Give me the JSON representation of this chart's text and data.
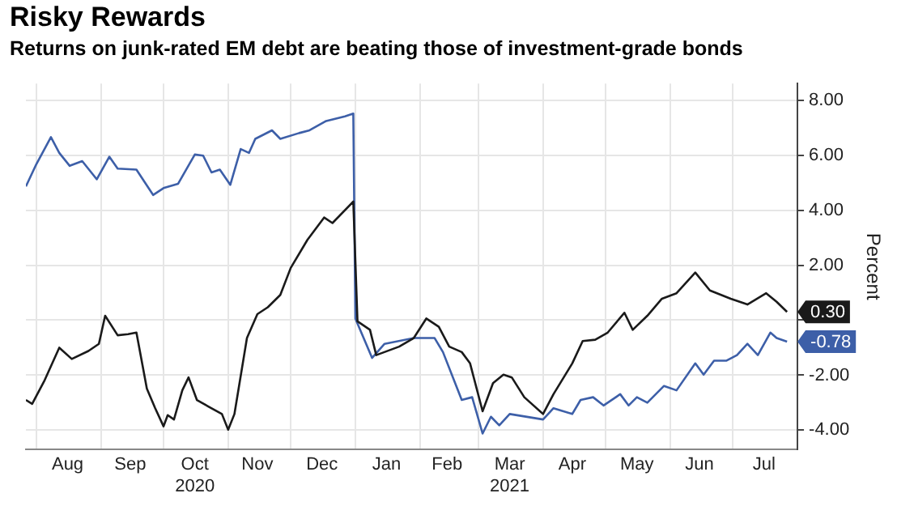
{
  "chart_data": {
    "type": "line",
    "title": "Risky Rewards",
    "subtitle": "Returns on junk-rated EM debt are beating those of investment-grade bonds",
    "ylabel": "Percent",
    "xlim": [
      "2020-07-27",
      "2021-08-01"
    ],
    "xticks": [
      {
        "value": "2020-08-01",
        "label": null
      },
      {
        "value": "2020-08-16",
        "label": "Aug"
      },
      {
        "value": "2020-09-01",
        "label": null
      },
      {
        "value": "2020-09-15",
        "label": "Sep"
      },
      {
        "value": "2020-10-01",
        "label": null
      },
      {
        "value": "2020-10-16",
        "label": "Oct\n2020"
      },
      {
        "value": "2020-11-01",
        "label": null
      },
      {
        "value": "2020-11-15",
        "label": "Nov"
      },
      {
        "value": "2020-12-01",
        "label": null
      },
      {
        "value": "2020-12-16",
        "label": "Dec"
      },
      {
        "value": "2021-01-01",
        "label": null
      },
      {
        "value": "2021-01-16",
        "label": "Jan"
      },
      {
        "value": "2021-02-01",
        "label": null
      },
      {
        "value": "2021-02-14",
        "label": "Feb"
      },
      {
        "value": "2021-03-01",
        "label": null
      },
      {
        "value": "2021-03-16",
        "label": "Mar\n2021"
      },
      {
        "value": "2021-04-01",
        "label": null
      },
      {
        "value": "2021-04-15",
        "label": "Apr"
      },
      {
        "value": "2021-05-01",
        "label": null
      },
      {
        "value": "2021-05-16",
        "label": "May"
      },
      {
        "value": "2021-06-01",
        "label": null
      },
      {
        "value": "2021-06-15",
        "label": "Jun"
      },
      {
        "value": "2021-07-01",
        "label": null
      },
      {
        "value": "2021-07-16",
        "label": "Jul"
      },
      {
        "value": "2021-08-01",
        "label": null
      }
    ],
    "ylim": [
      -4.7,
      8.6
    ],
    "yticks": [
      {
        "value": -4,
        "label": "-4.00"
      },
      {
        "value": -2,
        "label": "-2.00"
      },
      {
        "value": 0,
        "label": null
      },
      {
        "value": 2,
        "label": "2.00"
      },
      {
        "value": 4,
        "label": "4.00"
      },
      {
        "value": 6,
        "label": "6.00"
      },
      {
        "value": 8,
        "label": "8.00"
      }
    ],
    "grid": true,
    "legend": false,
    "marker": "none",
    "line_style": "solid",
    "series": [
      {
        "color": "#1a1a1a",
        "x": [
          "2020-07-27",
          "2020-07-30",
          "2020-08-05",
          "2020-08-12",
          "2020-08-18",
          "2020-08-26",
          "2020-08-31",
          "2020-09-03",
          "2020-09-09",
          "2020-09-14",
          "2020-09-18",
          "2020-09-23",
          "2020-09-27",
          "2020-10-01",
          "2020-10-03",
          "2020-10-06",
          "2020-10-10",
          "2020-10-13",
          "2020-10-17",
          "2020-10-23",
          "2020-10-29",
          "2020-11-01",
          "2020-11-04",
          "2020-11-10",
          "2020-11-15",
          "2020-11-20",
          "2020-11-26",
          "2020-12-01",
          "2020-12-09",
          "2020-12-17",
          "2020-12-21",
          "2020-12-31",
          "2021-01-02",
          "2021-01-08",
          "2021-01-11",
          "2021-01-22",
          "2021-01-29",
          "2021-02-04",
          "2021-02-10",
          "2021-02-15",
          "2021-02-21",
          "2021-02-25",
          "2021-03-03",
          "2021-03-08",
          "2021-03-13",
          "2021-03-17",
          "2021-03-23",
          "2021-04-01",
          "2021-04-06",
          "2021-04-15",
          "2021-04-20",
          "2021-04-26",
          "2021-05-02",
          "2021-05-10",
          "2021-05-14",
          "2021-05-21",
          "2021-05-28",
          "2021-06-04",
          "2021-06-13",
          "2021-06-20",
          "2021-06-30",
          "2021-07-08",
          "2021-07-17",
          "2021-07-22",
          "2021-07-27"
        ],
        "values": [
          -2.9,
          -3.04,
          -2.18,
          -1.0,
          -1.41,
          -1.12,
          -0.86,
          0.16,
          -0.55,
          -0.51,
          -0.45,
          -2.49,
          -3.2,
          -3.86,
          -3.45,
          -3.61,
          -2.55,
          -2.08,
          -2.9,
          -3.16,
          -3.41,
          -3.98,
          -3.41,
          -0.65,
          0.22,
          0.47,
          0.92,
          1.9,
          2.92,
          3.73,
          3.53,
          4.31,
          -0.04,
          -0.35,
          -1.27,
          -0.96,
          -0.65,
          0.06,
          -0.24,
          -0.96,
          -1.16,
          -1.57,
          -3.31,
          -2.29,
          -1.98,
          -2.08,
          -2.8,
          -3.41,
          -2.69,
          -1.57,
          -0.76,
          -0.71,
          -0.45,
          0.27,
          -0.35,
          0.16,
          0.78,
          0.98,
          1.73,
          1.08,
          0.78,
          0.57,
          0.98,
          0.67,
          0.3
        ],
        "value_labels": [
          null,
          null,
          null,
          null,
          null,
          null,
          null,
          null,
          null,
          null,
          null,
          null,
          null,
          null,
          null,
          null,
          null,
          null,
          null,
          null,
          null,
          null,
          null,
          null,
          null,
          null,
          null,
          null,
          null,
          null,
          null,
          null,
          null,
          null,
          null,
          null,
          null,
          null,
          null,
          null,
          null,
          null,
          null,
          null,
          null,
          null,
          null,
          null,
          null,
          null,
          null,
          null,
          null,
          null,
          null,
          null,
          null,
          null,
          null,
          null,
          null,
          null,
          null,
          null,
          "0.30"
        ]
      },
      {
        "color": "#3d5fa8",
        "x": [
          "2020-07-27",
          "2020-08-01",
          "2020-08-08",
          "2020-08-12",
          "2020-08-17",
          "2020-08-23",
          "2020-08-30",
          "2020-09-05",
          "2020-09-09",
          "2020-09-18",
          "2020-09-26",
          "2020-10-01",
          "2020-10-08",
          "2020-10-16",
          "2020-10-20",
          "2020-10-24",
          "2020-10-28",
          "2020-11-02",
          "2020-11-07",
          "2020-11-11",
          "2020-11-14",
          "2020-11-22",
          "2020-11-26",
          "2020-12-05",
          "2020-12-10",
          "2020-12-18",
          "2020-12-27",
          "2020-12-31",
          "2021-01-01",
          "2021-01-09",
          "2021-01-15",
          "2021-01-29",
          "2021-02-08",
          "2021-02-12",
          "2021-02-21",
          "2021-02-26",
          "2021-03-03",
          "2021-03-07",
          "2021-03-11",
          "2021-03-16",
          "2021-04-01",
          "2021-04-06",
          "2021-04-15",
          "2021-04-19",
          "2021-04-25",
          "2021-04-30",
          "2021-05-08",
          "2021-05-12",
          "2021-05-16",
          "2021-05-21",
          "2021-05-29",
          "2021-06-04",
          "2021-06-13",
          "2021-06-17",
          "2021-06-22",
          "2021-06-28",
          "2021-07-03",
          "2021-07-08",
          "2021-07-13",
          "2021-07-19",
          "2021-07-22",
          "2021-07-27"
        ],
        "values": [
          4.86,
          5.67,
          6.65,
          6.08,
          5.61,
          5.78,
          5.12,
          5.94,
          5.51,
          5.47,
          4.55,
          4.8,
          4.96,
          6.02,
          5.98,
          5.37,
          5.47,
          4.92,
          6.22,
          6.08,
          6.59,
          6.9,
          6.59,
          6.8,
          6.9,
          7.24,
          7.41,
          7.51,
          0.06,
          -1.37,
          -0.86,
          -0.65,
          -0.65,
          -1.16,
          -2.9,
          -2.8,
          -4.12,
          -3.51,
          -3.82,
          -3.41,
          -3.61,
          -3.2,
          -3.41,
          -2.9,
          -2.8,
          -3.1,
          -2.69,
          -3.1,
          -2.8,
          -3.0,
          -2.39,
          -2.55,
          -1.57,
          -1.98,
          -1.47,
          -1.47,
          -1.27,
          -0.86,
          -1.27,
          -0.45,
          -0.65,
          -0.78
        ],
        "value_labels": [
          null,
          null,
          null,
          null,
          null,
          null,
          null,
          null,
          null,
          null,
          null,
          null,
          null,
          null,
          null,
          null,
          null,
          null,
          null,
          null,
          null,
          null,
          null,
          null,
          null,
          null,
          null,
          null,
          null,
          null,
          null,
          null,
          null,
          null,
          null,
          null,
          null,
          null,
          null,
          null,
          null,
          null,
          null,
          null,
          null,
          null,
          null,
          null,
          null,
          null,
          null,
          null,
          null,
          null,
          null,
          null,
          null,
          null,
          null,
          null,
          null,
          "-0.78"
        ]
      }
    ]
  }
}
